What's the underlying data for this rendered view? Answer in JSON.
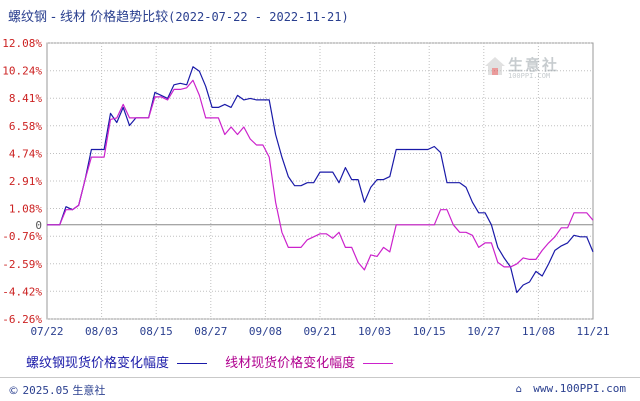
{
  "header": {
    "title": "螺纹钢 - 线材 价格趋势比较",
    "date_range": "(2022-07-22 - 2022-11-21)"
  },
  "watermark": {
    "name": "生意社",
    "url": "100PPI.COM"
  },
  "footer": {
    "copyright_symbol": "©",
    "copyright_year": "2025.05",
    "copyright_name": "生意社",
    "url": "www.100PPI.com"
  },
  "colors": {
    "series1": "#1a1aa8",
    "series2": "#cc22cc",
    "y_label_positive": "#cc2222",
    "y_label_zero": "#555555",
    "y_label_negative": "#cc2222",
    "grid": "#c0c0c0",
    "zero_line": "#888888"
  },
  "chart_data": {
    "type": "line",
    "title": "螺纹钢 - 线材 价格趋势比较",
    "x_ticks": [
      "07/22",
      "08/03",
      "08/15",
      "08/27",
      "09/08",
      "09/21",
      "10/03",
      "10/15",
      "10/27",
      "11/08",
      "11/21"
    ],
    "y_ticks": [
      "12.08%",
      "10.24%",
      "8.41%",
      "6.58%",
      "4.74%",
      "2.91%",
      "1.08%",
      "0",
      "-0.76%",
      "-2.59%",
      "-4.42%",
      "-6.26%"
    ],
    "y_tick_values": [
      12.08,
      10.24,
      8.41,
      6.58,
      4.74,
      2.91,
      1.08,
      0,
      -0.76,
      -2.59,
      -4.42,
      -6.26
    ],
    "ylim": [
      -6.26,
      12.08
    ],
    "x_unit": "trading day index",
    "xlim": [
      0,
      82
    ],
    "grid": true,
    "legend_position": "bottom",
    "series": [
      {
        "name": "螺纹钢现货价格变化幅度",
        "color": "#1a1aa8",
        "points": [
          [
            0,
            0
          ],
          [
            1,
            0
          ],
          [
            2,
            0
          ],
          [
            3,
            1.2
          ],
          [
            4,
            1
          ],
          [
            5,
            1.3
          ],
          [
            6,
            3
          ],
          [
            7,
            5
          ],
          [
            8,
            5
          ],
          [
            9,
            5
          ],
          [
            10,
            7.4
          ],
          [
            11,
            6.8
          ],
          [
            12,
            7.8
          ],
          [
            13,
            6.6
          ],
          [
            14,
            7.1
          ],
          [
            15,
            7.1
          ],
          [
            16,
            7.1
          ],
          [
            17,
            8.8
          ],
          [
            18,
            8.6
          ],
          [
            19,
            8.4
          ],
          [
            20,
            9.3
          ],
          [
            21,
            9.4
          ],
          [
            22,
            9.3
          ],
          [
            23,
            10.5
          ],
          [
            24,
            10.2
          ],
          [
            25,
            9.2
          ],
          [
            26,
            7.8
          ],
          [
            27,
            7.8
          ],
          [
            28,
            8
          ],
          [
            29,
            7.8
          ],
          [
            30,
            8.6
          ],
          [
            31,
            8.3
          ],
          [
            32,
            8.4
          ],
          [
            33,
            8.3
          ],
          [
            34,
            8.3
          ],
          [
            35,
            8.3
          ],
          [
            36,
            6
          ],
          [
            37,
            4.5
          ],
          [
            38,
            3.2
          ],
          [
            39,
            2.6
          ],
          [
            40,
            2.6
          ],
          [
            41,
            2.8
          ],
          [
            42,
            2.8
          ],
          [
            43,
            3.5
          ],
          [
            44,
            3.5
          ],
          [
            45,
            3.5
          ],
          [
            46,
            2.8
          ],
          [
            47,
            3.8
          ],
          [
            48,
            3
          ],
          [
            49,
            3
          ],
          [
            50,
            1.5
          ],
          [
            51,
            2.5
          ],
          [
            52,
            3
          ],
          [
            53,
            3
          ],
          [
            54,
            3.2
          ],
          [
            55,
            5
          ],
          [
            56,
            5
          ],
          [
            57,
            5
          ],
          [
            58,
            5
          ],
          [
            59,
            5
          ],
          [
            60,
            5
          ],
          [
            61,
            5.2
          ],
          [
            62,
            4.8
          ],
          [
            63,
            2.8
          ],
          [
            64,
            2.8
          ],
          [
            65,
            2.8
          ],
          [
            66,
            2.5
          ],
          [
            67,
            1.5
          ],
          [
            68,
            0.8
          ],
          [
            69,
            0.8
          ],
          [
            70,
            0
          ],
          [
            71,
            -1.5
          ],
          [
            72,
            -2.2
          ],
          [
            73,
            -2.8
          ],
          [
            74,
            -4.5
          ],
          [
            75,
            -4
          ],
          [
            76,
            -3.8
          ],
          [
            77,
            -3.1
          ],
          [
            78,
            -3.4
          ],
          [
            79,
            -2.6
          ],
          [
            80,
            -1.7
          ],
          [
            81,
            -1.4
          ],
          [
            82,
            -1.2
          ],
          [
            83,
            -0.7
          ],
          [
            84,
            -0.8
          ],
          [
            85,
            -0.8
          ],
          [
            86,
            -1.8
          ]
        ]
      },
      {
        "name": "线材现货价格变化幅度",
        "color": "#cc22cc",
        "points": [
          [
            0,
            0
          ],
          [
            1,
            0
          ],
          [
            2,
            0
          ],
          [
            3,
            1
          ],
          [
            4,
            1
          ],
          [
            5,
            1.3
          ],
          [
            6,
            3
          ],
          [
            7,
            4.5
          ],
          [
            8,
            4.5
          ],
          [
            9,
            4.5
          ],
          [
            10,
            7
          ],
          [
            11,
            7.1
          ],
          [
            12,
            8
          ],
          [
            13,
            7.1
          ],
          [
            14,
            7.1
          ],
          [
            15,
            7.1
          ],
          [
            16,
            7.1
          ],
          [
            17,
            8.5
          ],
          [
            18,
            8.5
          ],
          [
            19,
            8.3
          ],
          [
            20,
            9
          ],
          [
            21,
            9
          ],
          [
            22,
            9.1
          ],
          [
            23,
            9.6
          ],
          [
            24,
            8.6
          ],
          [
            25,
            7.1
          ],
          [
            26,
            7.1
          ],
          [
            27,
            7.1
          ],
          [
            28,
            6
          ],
          [
            29,
            6.5
          ],
          [
            30,
            6
          ],
          [
            31,
            6.5
          ],
          [
            32,
            5.7
          ],
          [
            33,
            5.3
          ],
          [
            34,
            5.3
          ],
          [
            35,
            4.5
          ],
          [
            36,
            1.5
          ],
          [
            37,
            -0.5
          ],
          [
            38,
            -1.5
          ],
          [
            39,
            -1.5
          ],
          [
            40,
            -1.5
          ],
          [
            41,
            -1
          ],
          [
            42,
            -0.8
          ],
          [
            43,
            -0.6
          ],
          [
            44,
            -0.6
          ],
          [
            45,
            -0.9
          ],
          [
            46,
            -0.5
          ],
          [
            47,
            -1.5
          ],
          [
            48,
            -1.5
          ],
          [
            49,
            -2.5
          ],
          [
            50,
            -3
          ],
          [
            51,
            -2
          ],
          [
            52,
            -2.1
          ],
          [
            53,
            -1.5
          ],
          [
            54,
            -1.8
          ],
          [
            55,
            0
          ],
          [
            56,
            0
          ],
          [
            57,
            0
          ],
          [
            58,
            0
          ],
          [
            59,
            0
          ],
          [
            60,
            0
          ],
          [
            61,
            0
          ],
          [
            62,
            1
          ],
          [
            63,
            1
          ],
          [
            64,
            0
          ],
          [
            65,
            -0.5
          ],
          [
            66,
            -0.5
          ],
          [
            67,
            -0.7
          ],
          [
            68,
            -1.5
          ],
          [
            69,
            -1.2
          ],
          [
            70,
            -1.2
          ],
          [
            71,
            -2.5
          ],
          [
            72,
            -2.8
          ],
          [
            73,
            -2.8
          ],
          [
            74,
            -2.6
          ],
          [
            75,
            -2.2
          ],
          [
            76,
            -2.3
          ],
          [
            77,
            -2.3
          ],
          [
            78,
            -1.7
          ],
          [
            79,
            -1.2
          ],
          [
            80,
            -0.8
          ],
          [
            81,
            -0.2
          ],
          [
            82,
            -0.2
          ],
          [
            83,
            0.8
          ],
          [
            84,
            0.8
          ],
          [
            85,
            0.8
          ],
          [
            86,
            0.3
          ]
        ]
      }
    ]
  }
}
